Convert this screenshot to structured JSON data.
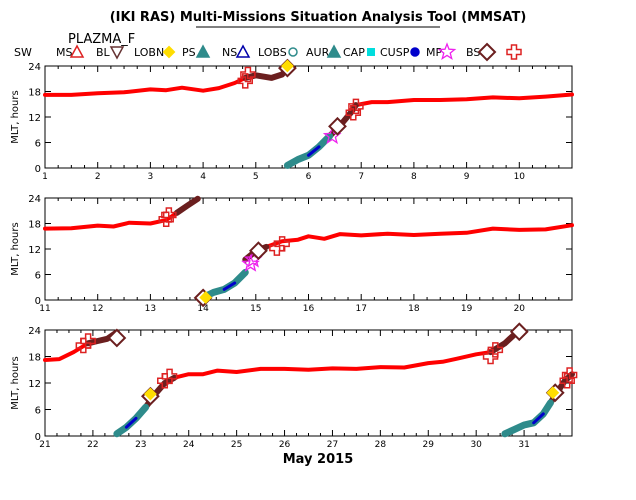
{
  "header": {
    "title": "(IKI RAS) Multi-Missions Situation Analysis Tool (MMSAT)",
    "subtitle": "PLAZMA_F"
  },
  "legend": [
    {
      "label": "SW",
      "symbol": "none",
      "color": "#000000"
    },
    {
      "label": "MS",
      "symbol": "triangle-open",
      "color": "#dd2222"
    },
    {
      "label": "BL",
      "symbol": "triangle-down-open",
      "color": "#663333"
    },
    {
      "label": "LOBN",
      "symbol": "diamond-filled",
      "color": "#ffdd00"
    },
    {
      "label": "PS",
      "symbol": "triangle-filled",
      "color": "#2e8b8b"
    },
    {
      "label": "NS",
      "symbol": "triangle-open",
      "color": "#0000aa"
    },
    {
      "label": "LOBS",
      "symbol": "circle-open",
      "color": "#2e8b8b"
    },
    {
      "label": "AUR",
      "symbol": "triangle-filled",
      "color": "#2e8b8b"
    },
    {
      "label": "CAP",
      "symbol": "square-filled",
      "color": "#00dddd"
    },
    {
      "label": "CUSP",
      "symbol": "circle-filled",
      "color": "#0000cc"
    },
    {
      "label": "MP",
      "symbol": "star-open",
      "color": "#ee22ee"
    },
    {
      "label": "BS",
      "symbol": "diamond-open",
      "color": "#6b1f1f"
    },
    {
      "label": "",
      "symbol": "cross-open",
      "color": "#dd2222"
    }
  ],
  "colors": {
    "sw": "#ff0000",
    "bs": "#6b1f1f",
    "ps": "#2e8b8b",
    "ns": "#0000cc",
    "mp": "#ee22ee",
    "lobn": "#ffdd00",
    "cross": "#dd2222"
  },
  "chart_data": [
    {
      "type": "line",
      "ylabel": "MLT, hours",
      "xlim": [
        1,
        11
      ],
      "ylim": [
        0,
        24
      ],
      "x_ticks": [
        "1",
        "2",
        "3",
        "4",
        "5",
        "6",
        "7",
        "8",
        "9",
        "10"
      ],
      "y_ticks": [
        "0",
        "6",
        "12",
        "18",
        "24"
      ],
      "sw_curve": [
        [
          1,
          17.2
        ],
        [
          1.5,
          17.2
        ],
        [
          2,
          17.6
        ],
        [
          2.5,
          17.8
        ],
        [
          3,
          18.5
        ],
        [
          3.3,
          18.3
        ],
        [
          3.6,
          18.9
        ],
        [
          4,
          18.2
        ],
        [
          4.3,
          18.8
        ],
        [
          4.6,
          20.0
        ],
        [
          4.8,
          21.2
        ]
      ],
      "bs_curve": [
        [
          4.8,
          21.2
        ],
        [
          5.0,
          21.8
        ],
        [
          5.3,
          21.2
        ],
        [
          5.5,
          22.0
        ],
        [
          5.6,
          23.5
        ]
      ],
      "ps_curve": [
        [
          5.6,
          0.6
        ],
        [
          5.8,
          2.0
        ],
        [
          6.0,
          3.0
        ],
        [
          6.2,
          5.0
        ],
        [
          6.4,
          7.5
        ]
      ],
      "bs2_curve": [
        [
          6.4,
          7.5
        ],
        [
          6.6,
          10.0
        ],
        [
          6.8,
          13.0
        ],
        [
          6.9,
          14.8
        ]
      ],
      "sw2_curve": [
        [
          6.9,
          14.8
        ],
        [
          7.2,
          15.5
        ],
        [
          7.5,
          15.5
        ],
        [
          8,
          16.0
        ],
        [
          8.5,
          16.0
        ],
        [
          9,
          16.2
        ],
        [
          9.5,
          16.6
        ],
        [
          10,
          16.4
        ],
        [
          10.5,
          16.8
        ],
        [
          11,
          17.3
        ]
      ],
      "bs_markers": [
        [
          5.6,
          23.5
        ],
        [
          6.55,
          9.8
        ]
      ],
      "cross_markers": [
        [
          4.8,
          20.5
        ],
        [
          4.85,
          22.0
        ],
        [
          6.9,
          14.5
        ],
        [
          6.85,
          13.0
        ]
      ],
      "star_markers": [
        [
          6.45,
          7.5
        ]
      ],
      "lobn_markers": [
        [
          5.6,
          24.0
        ]
      ]
    },
    {
      "type": "line",
      "ylabel": "MLT, hours",
      "xlim": [
        11,
        21
      ],
      "ylim": [
        0,
        24
      ],
      "x_ticks": [
        "11",
        "12",
        "13",
        "14",
        "15",
        "16",
        "17",
        "18",
        "19",
        "20"
      ],
      "y_ticks": [
        "0",
        "6",
        "12",
        "18",
        "24"
      ],
      "sw_curve": [
        [
          11,
          16.8
        ],
        [
          11.5,
          16.9
        ],
        [
          12,
          17.5
        ],
        [
          12.3,
          17.3
        ],
        [
          12.6,
          18.2
        ],
        [
          13,
          18.0
        ],
        [
          13.3,
          18.8
        ],
        [
          13.5,
          20.5
        ]
      ],
      "bs_curve": [
        [
          13.5,
          20.5
        ],
        [
          13.7,
          22.2
        ],
        [
          13.9,
          23.8
        ]
      ],
      "ps_curve": [
        [
          14.0,
          0.6
        ],
        [
          14.2,
          1.8
        ],
        [
          14.4,
          2.5
        ],
        [
          14.6,
          4.0
        ],
        [
          14.8,
          6.5
        ]
      ],
      "bs2_curve": [
        [
          14.8,
          9.5
        ],
        [
          15.0,
          11.5
        ],
        [
          15.2,
          12.5
        ]
      ],
      "sw2_curve": [
        [
          15.2,
          12.5
        ],
        [
          15.5,
          13.8
        ],
        [
          15.8,
          14.2
        ],
        [
          16,
          15.0
        ],
        [
          16.3,
          14.4
        ],
        [
          16.6,
          15.5
        ],
        [
          17,
          15.2
        ],
        [
          17.5,
          15.6
        ],
        [
          18,
          15.3
        ],
        [
          18.5,
          15.6
        ],
        [
          19,
          15.8
        ],
        [
          19.5,
          16.8
        ],
        [
          20,
          16.5
        ],
        [
          20.5,
          16.6
        ],
        [
          21,
          17.6
        ]
      ],
      "bs_markers": [
        [
          14.0,
          0.5
        ],
        [
          15.05,
          11.6
        ]
      ],
      "cross_markers": [
        [
          13.3,
          19.0
        ],
        [
          13.35,
          20.0
        ],
        [
          15.5,
          13.2
        ],
        [
          15.4,
          12.2
        ]
      ],
      "star_markers": [
        [
          14.9,
          8.5
        ],
        [
          14.95,
          9.5
        ]
      ],
      "lobn_markers": [
        [
          14.05,
          0.6
        ]
      ]
    },
    {
      "type": "line",
      "ylabel": "MLT, hours",
      "xlim": [
        21,
        32
      ],
      "ylim": [
        0,
        24
      ],
      "x_ticks": [
        "21",
        "22",
        "23",
        "24",
        "25",
        "26",
        "27",
        "28",
        "29",
        "30",
        "31"
      ],
      "y_ticks": [
        "0",
        "6",
        "12",
        "18",
        "24"
      ],
      "sw_curve": [
        [
          21,
          17.2
        ],
        [
          21.3,
          17.4
        ],
        [
          21.6,
          19.0
        ],
        [
          21.9,
          21.0
        ]
      ],
      "bs_curve": [
        [
          21.9,
          21.0
        ],
        [
          22.1,
          21.5
        ],
        [
          22.3,
          22.0
        ],
        [
          22.5,
          23.5
        ]
      ],
      "ps_curve": [
        [
          22.5,
          0.5
        ],
        [
          22.7,
          2.0
        ],
        [
          22.9,
          4.0
        ],
        [
          23.1,
          6.5
        ]
      ],
      "bs2_curve": [
        [
          23.1,
          6.5
        ],
        [
          23.3,
          9.5
        ],
        [
          23.5,
          12.0
        ],
        [
          23.7,
          13.2
        ]
      ],
      "sw2_curve": [
        [
          23.7,
          13.2
        ],
        [
          24,
          14.0
        ],
        [
          24.3,
          14.0
        ],
        [
          24.6,
          14.8
        ],
        [
          25,
          14.5
        ],
        [
          25.5,
          15.2
        ],
        [
          26,
          15.2
        ],
        [
          26.5,
          15.0
        ],
        [
          27,
          15.3
        ],
        [
          27.5,
          15.2
        ],
        [
          28,
          15.6
        ],
        [
          28.5,
          15.5
        ],
        [
          29,
          16.5
        ],
        [
          29.3,
          16.8
        ],
        [
          29.6,
          17.5
        ],
        [
          30.0,
          18.5
        ],
        [
          30.3,
          19.0
        ]
      ],
      "bs3_curve": [
        [
          30.3,
          19.0
        ],
        [
          30.6,
          21.0
        ],
        [
          30.9,
          24.0
        ]
      ],
      "ps2_curve": [
        [
          30.6,
          0.5
        ],
        [
          30.8,
          1.5
        ],
        [
          31.0,
          2.5
        ],
        [
          31.2,
          3.0
        ],
        [
          31.4,
          5.0
        ],
        [
          31.55,
          7.5
        ]
      ],
      "bs4_curve": [
        [
          31.55,
          7.5
        ],
        [
          31.7,
          10.0
        ],
        [
          31.85,
          12.5
        ],
        [
          32.0,
          14.0
        ]
      ],
      "bs_markers": [
        [
          22.5,
          22.2
        ],
        [
          23.2,
          9.0
        ],
        [
          30.9,
          23.6
        ],
        [
          31.65,
          9.8
        ]
      ],
      "cross_markers": [
        [
          21.8,
          20.5
        ],
        [
          21.9,
          21.5
        ],
        [
          23.5,
          12.5
        ],
        [
          23.6,
          13.5
        ],
        [
          30.3,
          18.0
        ],
        [
          30.4,
          19.5
        ],
        [
          31.9,
          12.5
        ],
        [
          31.95,
          13.8
        ]
      ],
      "star_markers": [],
      "lobn_markers": [
        [
          23.2,
          9.5
        ],
        [
          31.6,
          9.8
        ]
      ],
      "xlabel": "May 2015"
    }
  ]
}
